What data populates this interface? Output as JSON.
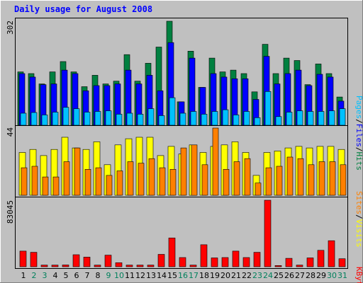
{
  "chart_data": {
    "title": "Daily usage for August 2008",
    "colors": {
      "background": "#c0c0c0",
      "title": "#0000ff",
      "hits": "#008040",
      "files": "#0000ff",
      "pages": "#00c0ff",
      "visits": "#ffff00",
      "sites": "#ff8000",
      "kbytes": "#ff0000",
      "weekend_day": "#00805c",
      "weekday": "#000000"
    },
    "x": [
      "1",
      "2",
      "3",
      "4",
      "5",
      "6",
      "7",
      "8",
      "9",
      "10",
      "11",
      "12",
      "13",
      "14",
      "15",
      "16",
      "17",
      "18",
      "19",
      "20",
      "21",
      "22",
      "23",
      "24",
      "25",
      "26",
      "27",
      "28",
      "29",
      "30",
      "31"
    ],
    "weekend_days": [
      "2",
      "3",
      "9",
      "10",
      "16",
      "17",
      "23",
      "24",
      "30",
      "31"
    ],
    "panels": [
      {
        "type": "bar",
        "name": "hits-files-pages",
        "ymax_label": "302",
        "ymax": 302,
        "legend": [
          {
            "label": "Pages",
            "color": "#00c0ff"
          },
          {
            "label": "Files",
            "color": "#0000ff"
          },
          {
            "label": "Hits",
            "color": "#008040"
          }
        ],
        "series": [
          {
            "name": "Hits",
            "values": [
              155,
              150,
              120,
              155,
              185,
              155,
              112,
              145,
              120,
              128,
              205,
              128,
              180,
              227,
              302,
              68,
              215,
              110,
              195,
              155,
              160,
              150,
              97,
              235,
              150,
              195,
              188,
              118,
              178,
              150,
              82
            ]
          },
          {
            "name": "Files",
            "values": [
              150,
              140,
              118,
              120,
              160,
              150,
              100,
              115,
              115,
              120,
              160,
              120,
              145,
              100,
              240,
              68,
              195,
              110,
              150,
              140,
              135,
              135,
              75,
              200,
              120,
              150,
              160,
              115,
              148,
              140,
              70
            ]
          },
          {
            "name": "Pages",
            "values": [
              35,
              37,
              30,
              38,
              52,
              48,
              38,
              40,
              42,
              32,
              35,
              32,
              48,
              28,
              80,
              35,
              40,
              32,
              40,
              45,
              30,
              40,
              22,
              98,
              25,
              38,
              42,
              40,
              40,
              42,
              48
            ]
          }
        ]
      },
      {
        "type": "bar",
        "name": "visits-sites",
        "ymax_label": "44",
        "ymax": 44,
        "legend": [
          {
            "label": "Sites",
            "color": "#ff8000"
          },
          {
            "label": "Visits",
            "color": "#ffff00"
          }
        ],
        "series": [
          {
            "name": "Visits",
            "values": [
              28,
              30,
              26,
              30,
              38,
              31,
              30,
              35,
              20,
              33,
              37,
              38,
              38,
              26,
              32,
              27,
              33,
              28,
              32,
              33,
              35,
              28,
              13,
              28,
              29,
              31,
              32,
              31,
              32,
              32,
              30
            ]
          },
          {
            "name": "Sites",
            "values": [
              18,
              19,
              12,
              12,
              22,
              31,
              17,
              18,
              13,
              16,
              22,
              21,
              24,
              18,
              17,
              31,
              33,
              20,
              44,
              17,
              22,
              24,
              8,
              18,
              19,
              25,
              24,
              20,
              22,
              22,
              20
            ]
          }
        ]
      },
      {
        "type": "bar",
        "name": "kbytes",
        "ymax_label": "83045",
        "ymax": 83045,
        "legend": [
          {
            "label": "KBytes",
            "color": "#ff0000"
          }
        ],
        "series": [
          {
            "name": "KBytes",
            "values": [
              19500,
              18000,
              2000,
              2000,
              2200,
              15000,
              12000,
              2000,
              14500,
              5000,
              2000,
              2000,
              2000,
              15500,
              36000,
              11500,
              2000,
              27500,
              11000,
              11500,
              19500,
              11500,
              18000,
              83045,
              1500,
              10500,
              2000,
              11000,
              20500,
              32500,
              10000
            ]
          }
        ]
      }
    ]
  }
}
